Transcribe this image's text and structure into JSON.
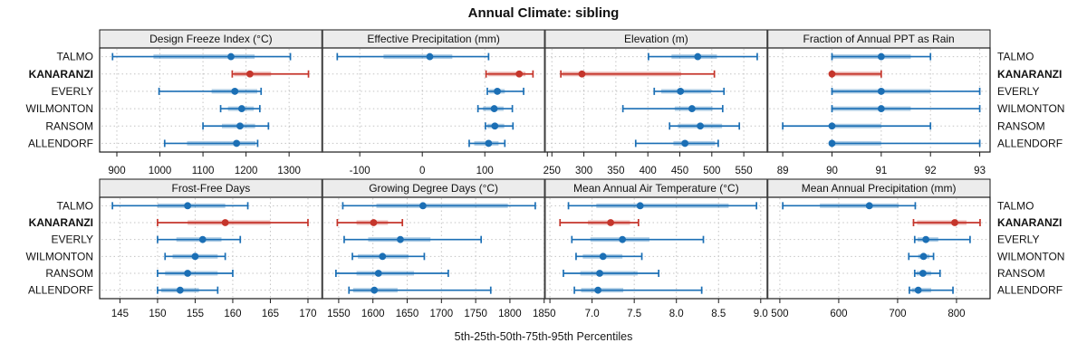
{
  "title": "Annual Climate: sibling",
  "caption": "5th-25th-50th-75th-95th Percentiles",
  "locations": [
    "TALMO",
    "KANARANZI",
    "EVERLY",
    "WILMONTON",
    "RANSOM",
    "ALLENDORF"
  ],
  "highlighted_location": "KANARANZI",
  "colors": {
    "normal": "#1b6fb5",
    "highlight": "#c5352b",
    "strip_bg": "#ececec",
    "grid": "#c4c4c4",
    "frame": "#1a1a1a",
    "divider": "#3c3c3c"
  },
  "chart_data": {
    "type": "trellis-dot-interval",
    "grid": {
      "rows": 2,
      "cols": 4
    },
    "percentile_scheme": [
      "5th",
      "25th",
      "50th",
      "75th",
      "95th"
    ],
    "panels": [
      {
        "title": "Design Freeze Index (°C)",
        "row": 0,
        "col": 0,
        "axis_range": [
          860,
          1377
        ],
        "tick_values": [
          900,
          1000,
          1100,
          1200,
          1300
        ],
        "tick_labels": [
          "900",
          "1000",
          "1100",
          "1200",
          "1300"
        ],
        "series": [
          {
            "location": "TALMO",
            "p": [
              890,
              985,
              1165,
              1220,
              1303
            ]
          },
          {
            "location": "KANARANZI",
            "p": [
              1168,
              1172,
              1209,
              1258,
              1345
            ]
          },
          {
            "location": "EVERLY",
            "p": [
              998,
              1120,
              1174,
              1226,
              1235
            ]
          },
          {
            "location": "WILMONTON",
            "p": [
              1141,
              1158,
              1190,
              1218,
              1232
            ]
          },
          {
            "location": "RANSOM",
            "p": [
              1100,
              1144,
              1186,
              1221,
              1252
            ]
          },
          {
            "location": "ALLENDORF",
            "p": [
              1011,
              1063,
              1178,
              1222,
              1227
            ]
          }
        ]
      },
      {
        "title": "Effective Precipitation (mm)",
        "row": 0,
        "col": 1,
        "axis_range": [
          -160,
          196
        ],
        "tick_values": [
          -100,
          0,
          100,
          200
        ],
        "tick_labels": [
          "-100",
          "0",
          "100",
          ""
        ],
        "series": [
          {
            "location": "TALMO",
            "p": [
              -136,
              -62,
              12,
              48,
              106
            ]
          },
          {
            "location": "KANARANZI",
            "p": [
              102,
              105,
              155,
              165,
              177
            ]
          },
          {
            "location": "EVERLY",
            "p": [
              104,
              107,
              120,
              132,
              162
            ]
          },
          {
            "location": "WILMONTON",
            "p": [
              89,
              97,
              115,
              130,
              144
            ]
          },
          {
            "location": "RANSOM",
            "p": [
              101,
              104,
              116,
              131,
              145
            ]
          },
          {
            "location": "ALLENDORF",
            "p": [
              75,
              83,
              106,
              122,
              132
            ]
          }
        ]
      },
      {
        "title": "Elevation (m)",
        "row": 0,
        "col": 2,
        "axis_range": [
          239,
          587
        ],
        "tick_values": [
          250,
          300,
          350,
          400,
          450,
          500,
          550
        ],
        "tick_labels": [
          "250",
          "300",
          "350",
          "400",
          "450",
          "500",
          "550"
        ],
        "series": [
          {
            "location": "TALMO",
            "p": [
              401,
              437,
              478,
              508,
              571
            ]
          },
          {
            "location": "KANARANZI",
            "p": [
              264,
              266,
              297,
              452,
              504
            ]
          },
          {
            "location": "EVERLY",
            "p": [
              410,
              421,
              451,
              499,
              519
            ]
          },
          {
            "location": "WILMONTON",
            "p": [
              361,
              442,
              469,
              501,
              517
            ]
          },
          {
            "location": "RANSOM",
            "p": [
              434,
              447,
              482,
              516,
              543
            ]
          },
          {
            "location": "ALLENDORF",
            "p": [
              381,
              440,
              458,
              505,
              510
            ]
          }
        ]
      },
      {
        "title": "Fraction of Annual PPT as Rain",
        "row": 0,
        "col": 3,
        "axis_range": [
          88.69,
          93.21
        ],
        "tick_values": [
          89,
          90,
          91,
          92,
          93
        ],
        "tick_labels": [
          "89",
          "90",
          "91",
          "92",
          "93"
        ],
        "series": [
          {
            "location": "TALMO",
            "p": [
              90,
              90,
              91,
              91.6,
              92
            ]
          },
          {
            "location": "KANARANZI",
            "p": [
              90,
              90,
              90,
              91,
              91
            ]
          },
          {
            "location": "EVERLY",
            "p": [
              90,
              90,
              91,
              92,
              93
            ]
          },
          {
            "location": "WILMONTON",
            "p": [
              90,
              90,
              91,
              91.6,
              93
            ]
          },
          {
            "location": "RANSOM",
            "p": [
              89,
              90,
              90,
              91,
              92
            ]
          },
          {
            "location": "ALLENDORF",
            "p": [
              90,
              90,
              90,
              91,
              93
            ]
          }
        ]
      },
      {
        "title": "Frost-Free Days",
        "row": 1,
        "col": 0,
        "axis_range": [
          142.3,
          171.9
        ],
        "tick_values": [
          145,
          150,
          155,
          160,
          165,
          170
        ],
        "tick_labels": [
          "145",
          "150",
          "155",
          "160",
          "165",
          "170"
        ],
        "series": [
          {
            "location": "TALMO",
            "p": [
              144,
              150,
              154,
              159,
              162
            ]
          },
          {
            "location": "KANARANZI",
            "p": [
              150,
              154,
              159,
              165,
              170
            ]
          },
          {
            "location": "EVERLY",
            "p": [
              150,
              152.5,
              156,
              158.5,
              161
            ]
          },
          {
            "location": "WILMONTON",
            "p": [
              151,
              152,
              155,
              158,
              159
            ]
          },
          {
            "location": "RANSOM",
            "p": [
              150,
              151,
              154,
              158,
              160
            ]
          },
          {
            "location": "ALLENDORF",
            "p": [
              150,
              150.5,
              153,
              155.5,
              158
            ]
          }
        ]
      },
      {
        "title": "Growing Degree Days (°C)",
        "row": 1,
        "col": 1,
        "axis_range": [
          1526,
          1851
        ],
        "tick_values": [
          1550,
          1600,
          1650,
          1700,
          1750,
          1800,
          1850
        ],
        "tick_labels": [
          "1550",
          "1600",
          "1650",
          "1700",
          "1750",
          "1800",
          "1850"
        ],
        "series": [
          {
            "location": "TALMO",
            "p": [
              1556,
              1605,
              1673,
              1797,
              1837
            ]
          },
          {
            "location": "KANARANZI",
            "p": [
              1548,
              1576,
              1601,
              1622,
              1643
            ]
          },
          {
            "location": "EVERLY",
            "p": [
              1558,
              1593,
              1640,
              1684,
              1758
            ]
          },
          {
            "location": "WILMONTON",
            "p": [
              1570,
              1578,
              1614,
              1652,
              1675
            ]
          },
          {
            "location": "RANSOM",
            "p": [
              1546,
              1576,
              1608,
              1660,
              1710
            ]
          },
          {
            "location": "ALLENDORF",
            "p": [
              1565,
              1571,
              1602,
              1636,
              1772
            ]
          }
        ]
      },
      {
        "title": "Mean Annual Air Temperature (°C)",
        "row": 1,
        "col": 2,
        "axis_range": [
          6.44,
          9.08
        ],
        "tick_values": [
          6.5,
          7.0,
          7.5,
          8.0,
          8.5,
          9.0
        ],
        "tick_labels": [
          "",
          "7.0",
          "7.5",
          "8.0",
          "8.5",
          "9.0"
        ],
        "series": [
          {
            "location": "TALMO",
            "p": [
              6.72,
              7.05,
              7.57,
              8.62,
              8.95
            ]
          },
          {
            "location": "KANARANZI",
            "p": [
              6.62,
              6.95,
              7.22,
              7.45,
              7.55
            ]
          },
          {
            "location": "EVERLY",
            "p": [
              6.76,
              6.98,
              7.36,
              7.68,
              8.32
            ]
          },
          {
            "location": "WILMONTON",
            "p": [
              6.81,
              6.89,
              7.13,
              7.36,
              7.59
            ]
          },
          {
            "location": "RANSOM",
            "p": [
              6.66,
              6.86,
              7.09,
              7.54,
              7.79
            ]
          },
          {
            "location": "ALLENDORF",
            "p": [
              6.79,
              6.87,
              7.07,
              7.37,
              8.3
            ]
          }
        ]
      },
      {
        "title": "Mean Annual Precipitation (mm)",
        "row": 1,
        "col": 3,
        "axis_range": [
          479,
          857
        ],
        "tick_values": [
          500,
          600,
          700,
          800
        ],
        "tick_labels": [
          "500",
          "600",
          "700",
          "800"
        ],
        "series": [
          {
            "location": "TALMO",
            "p": [
              505,
              568,
              652,
              702,
              730
            ]
          },
          {
            "location": "KANARANZI",
            "p": [
              727,
              733,
              797,
              817,
              840
            ]
          },
          {
            "location": "EVERLY",
            "p": [
              729,
              734,
              748,
              769,
              823
            ]
          },
          {
            "location": "WILMONTON",
            "p": [
              719,
              735,
              744,
              754,
              761
            ]
          },
          {
            "location": "RANSOM",
            "p": [
              729,
              732,
              743,
              757,
              772
            ]
          },
          {
            "location": "ALLENDORF",
            "p": [
              720,
              724,
              735,
              757,
              794
            ]
          }
        ]
      }
    ]
  }
}
